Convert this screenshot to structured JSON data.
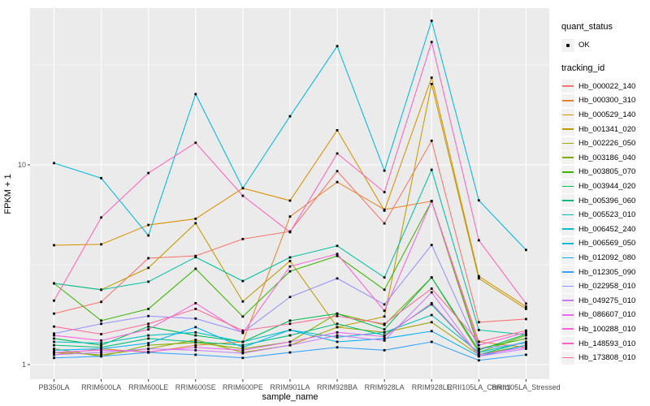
{
  "chart_data": {
    "type": "line",
    "title": "",
    "xlabel": "sample_name",
    "ylabel": "FPKM + 1",
    "y_scale": "log10",
    "grid": true,
    "legend_position": "right",
    "panel_bg": "#EBEBEB",
    "grid_color": "#FFFFFF",
    "tick_text_color": "#4D4D4D",
    "point_marker_color": "#000000",
    "y_ticks": [
      {
        "value": 1,
        "label": "1"
      },
      {
        "value": 10,
        "label": "10"
      }
    ],
    "y_minor_breaks": [
      3.1623,
      31.623
    ],
    "categories": [
      "PB350LA",
      "RRIM600LA",
      "RRIM600LE",
      "RRIM600SE",
      "RRIM600PE",
      "RRIM901LA",
      "RRIM928BA",
      "RRIM928LA",
      "RRIM928LE",
      "RRII105LA_Control",
      "RRII105LA_Stressed"
    ],
    "series": [
      {
        "tracking_id": "Hb_000022_140",
        "color": "#F8766D",
        "values": [
          1.8,
          2.06,
          3.41,
          3.5,
          4.25,
          4.64,
          9.3,
          5.09,
          13.2,
          1.63,
          1.69
        ]
      },
      {
        "tracking_id": "Hb_000300_310",
        "color": "#EA8331",
        "values": [
          1.12,
          1.2,
          1.15,
          1.25,
          1.3,
          5.51,
          8.2,
          5.97,
          6.58,
          1.3,
          1.22
        ]
      },
      {
        "tracking_id": "Hb_000529_140",
        "color": "#D89000",
        "values": [
          3.96,
          4.0,
          5.0,
          5.37,
          7.64,
          6.62,
          14.9,
          5.9,
          27.3,
          2.77,
          1.95
        ]
      },
      {
        "tracking_id": "Hb_001341_020",
        "color": "#C09B00",
        "values": [
          2.55,
          2.37,
          3.05,
          5.1,
          2.07,
          3.3,
          1.54,
          1.74,
          25.4,
          2.7,
          1.9
        ]
      },
      {
        "tracking_id": "Hb_002226_050",
        "color": "#A3A500",
        "values": [
          1.15,
          1.12,
          1.2,
          1.33,
          1.15,
          1.25,
          1.54,
          1.45,
          1.63,
          1.12,
          1.25
        ]
      },
      {
        "tracking_id": "Hb_003186_040",
        "color": "#7CAE00",
        "values": [
          1.2,
          1.1,
          1.25,
          1.29,
          1.2,
          1.3,
          1.8,
          1.58,
          2.73,
          1.15,
          1.4
        ]
      },
      {
        "tracking_id": "Hb_003805_070",
        "color": "#39B600",
        "values": [
          2.55,
          1.66,
          1.9,
          3.02,
          1.74,
          2.93,
          3.5,
          2.37,
          6.58,
          1.2,
          1.35
        ]
      },
      {
        "tracking_id": "Hb_003944_020",
        "color": "#00BB4E",
        "values": [
          1.35,
          1.25,
          1.55,
          1.4,
          1.3,
          1.66,
          1.8,
          1.5,
          2.73,
          1.18,
          1.42
        ]
      },
      {
        "tracking_id": "Hb_005396_060",
        "color": "#00BF7D",
        "values": [
          1.25,
          1.22,
          1.35,
          1.3,
          1.25,
          1.4,
          1.6,
          1.4,
          2.0,
          1.12,
          1.3
        ]
      },
      {
        "tracking_id": "Hb_005523_010",
        "color": "#00C1A3",
        "values": [
          2.55,
          2.37,
          2.6,
          3.45,
          2.62,
          3.44,
          3.93,
          2.73,
          9.45,
          1.49,
          1.41
        ]
      },
      {
        "tracking_id": "Hb_006452_240",
        "color": "#00BFC4",
        "values": [
          1.3,
          1.28,
          1.4,
          1.45,
          1.3,
          1.49,
          1.37,
          1.45,
          1.77,
          1.15,
          1.3
        ]
      },
      {
        "tracking_id": "Hb_006569_050",
        "color": "#00BAE0",
        "values": [
          10.2,
          8.58,
          4.43,
          22.6,
          7.64,
          17.5,
          39.3,
          9.35,
          52.6,
          6.64,
          3.75
        ]
      },
      {
        "tracking_id": "Hb_012092_080",
        "color": "#00B0F6",
        "values": [
          1.18,
          1.2,
          1.28,
          1.54,
          1.22,
          1.49,
          1.3,
          1.35,
          1.47,
          1.1,
          1.25
        ]
      },
      {
        "tracking_id": "Hb_012305_090",
        "color": "#35A2FF",
        "values": [
          1.08,
          1.1,
          1.15,
          1.12,
          1.08,
          1.15,
          1.22,
          1.18,
          1.3,
          1.05,
          1.12
        ]
      },
      {
        "tracking_id": "Hb_022958_010",
        "color": "#9590FF",
        "values": [
          1.43,
          1.6,
          1.75,
          1.7,
          1.45,
          2.18,
          2.7,
          2.0,
          3.97,
          1.2,
          1.28
        ]
      },
      {
        "tracking_id": "Hb_049275_010",
        "color": "#C77CFF",
        "values": [
          1.12,
          1.15,
          1.2,
          1.18,
          1.14,
          1.25,
          1.4,
          1.32,
          2.3,
          1.1,
          1.2
        ]
      },
      {
        "tracking_id": "Hb_086607_010",
        "color": "#E76BF3",
        "values": [
          1.15,
          1.18,
          1.16,
          1.22,
          1.18,
          1.3,
          1.45,
          1.38,
          2.03,
          1.12,
          1.22
        ]
      },
      {
        "tracking_id": "Hb_100288_010",
        "color": "#FA62DB",
        "values": [
          1.4,
          1.32,
          1.5,
          2.03,
          1.44,
          3.1,
          3.58,
          1.86,
          6.58,
          1.25,
          1.45
        ]
      },
      {
        "tracking_id": "Hb_148593_010",
        "color": "#FF62BC",
        "values": [
          2.09,
          5.45,
          9.1,
          12.9,
          7.0,
          4.6,
          11.4,
          7.3,
          41.2,
          4.19,
          2.02
        ]
      },
      {
        "tracking_id": "Hb_173808_010",
        "color": "#FF6A98",
        "values": [
          1.55,
          1.42,
          1.6,
          1.9,
          1.48,
          1.6,
          1.75,
          1.6,
          2.4,
          1.3,
          1.48
        ]
      }
    ]
  },
  "legend": {
    "quant_status": {
      "title": "quant_status",
      "items": [
        {
          "label": "OK",
          "marker": "black-point"
        }
      ]
    },
    "tracking_id": {
      "title": "tracking_id"
    }
  }
}
